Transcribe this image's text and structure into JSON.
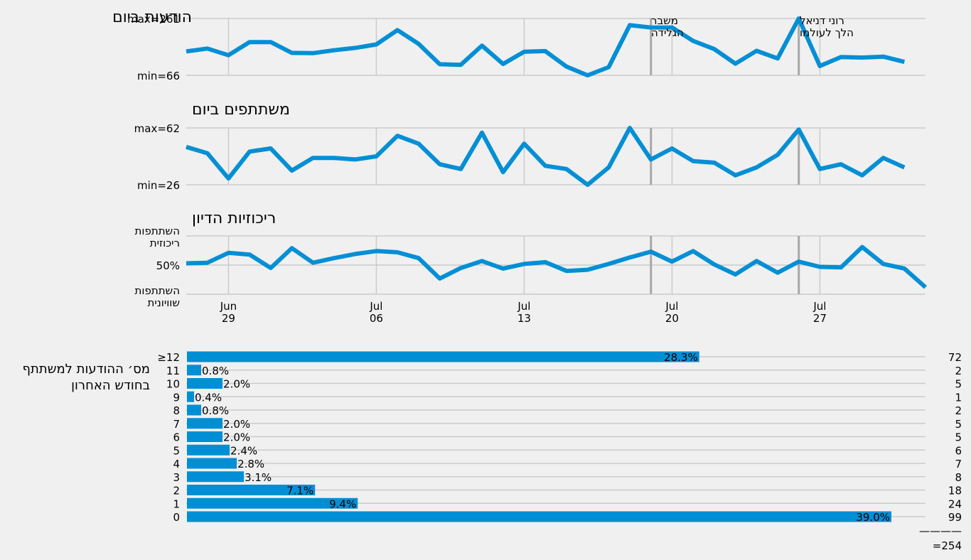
{
  "chart_data": [
    {
      "type": "line",
      "title": "הודעות ביום",
      "y_tick_labels": {
        "max": "max=261",
        "min": "min=66"
      },
      "ylim": [
        66,
        261
      ],
      "x_ticks": [
        {
          "month": "Jun",
          "day": "29"
        },
        {
          "month": "Jul",
          "day": "06"
        },
        {
          "month": "Jul",
          "day": "13"
        },
        {
          "month": "Jul",
          "day": "20"
        },
        {
          "month": "Jul",
          "day": "27"
        }
      ],
      "x": [
        "06-27",
        "06-28",
        "06-29",
        "06-30",
        "07-01",
        "07-02",
        "07-03",
        "07-04",
        "07-05",
        "07-06",
        "07-07",
        "07-08",
        "07-09",
        "07-10",
        "07-11",
        "07-12",
        "07-13",
        "07-14",
        "07-15",
        "07-16",
        "07-17",
        "07-18",
        "07-19",
        "07-20",
        "07-21",
        "07-22",
        "07-23",
        "07-24",
        "07-25",
        "07-26",
        "07-27",
        "07-28",
        "07-29",
        "07-30",
        "07-31"
      ],
      "values": [
        148,
        158,
        135,
        180,
        180,
        143,
        142,
        152,
        160,
        172,
        221,
        174,
        104,
        102,
        168,
        105,
        147,
        149,
        96,
        66,
        94,
        238,
        230,
        230,
        184,
        156,
        106,
        150,
        124,
        261,
        98,
        129,
        127,
        130,
        112
      ],
      "events": [
        {
          "date": "07-19",
          "label_lines": [
            "משבר",
            "הגלידה"
          ]
        },
        {
          "date": "07-26",
          "label_lines": [
            "רוני דניאל",
            "הלך לעולמו"
          ]
        }
      ],
      "grid": true
    },
    {
      "type": "line",
      "title": "משתתפים ביום",
      "y_tick_labels": {
        "max": "max=62",
        "min": "min=26"
      },
      "ylim": [
        26,
        62
      ],
      "x": [
        "06-27",
        "06-28",
        "06-29",
        "06-30",
        "07-01",
        "07-02",
        "07-03",
        "07-04",
        "07-05",
        "07-06",
        "07-07",
        "07-08",
        "07-09",
        "07-10",
        "07-11",
        "07-12",
        "07-13",
        "07-14",
        "07-15",
        "07-16",
        "07-17",
        "07-18",
        "07-19",
        "07-20",
        "07-21",
        "07-22",
        "07-23",
        "07-24",
        "07-25",
        "07-26",
        "07-27",
        "07-28",
        "07-29",
        "07-30",
        "07-31"
      ],
      "values": [
        50,
        46,
        30,
        47,
        49,
        35,
        43,
        43,
        42,
        44,
        57,
        52,
        39,
        36,
        59,
        34,
        52,
        38,
        36,
        26,
        37,
        62,
        42,
        49,
        41,
        40,
        32,
        37,
        45,
        61,
        36,
        39,
        32,
        43,
        37
      ],
      "events": [
        {
          "date": "07-19"
        },
        {
          "date": "07-26"
        }
      ],
      "grid": true
    },
    {
      "type": "line",
      "title": "ריכוזיות הדיון",
      "y_tick_labels": {
        "top_lines": [
          "השתתפות",
          "ריכוזית"
        ],
        "mid": "50%",
        "bottom_lines": [
          "השתתפות",
          "שוויונית"
        ]
      },
      "ylim": [
        0,
        100
      ],
      "x": [
        "06-27",
        "06-28",
        "06-29",
        "06-30",
        "07-01",
        "07-02",
        "07-03",
        "07-04",
        "07-05",
        "07-06",
        "07-07",
        "07-08",
        "07-09",
        "07-10",
        "07-11",
        "07-12",
        "07-13",
        "07-14",
        "07-15",
        "07-16",
        "07-17",
        "07-18",
        "07-19",
        "07-20",
        "07-21",
        "07-22",
        "07-23",
        "07-24",
        "07-25",
        "07-26",
        "07-27",
        "07-28",
        "07-29",
        "07-30",
        "07-31",
        "08-01"
      ],
      "values": [
        53,
        54,
        71,
        68,
        45,
        79,
        54,
        62,
        69,
        74,
        72,
        62,
        27,
        45,
        57,
        44,
        52,
        55,
        40,
        42,
        52,
        63,
        73,
        56,
        74,
        51,
        34,
        57,
        37,
        56,
        47,
        46,
        81,
        52,
        44,
        12
      ],
      "events": [
        {
          "date": "07-19"
        },
        {
          "date": "07-26"
        }
      ],
      "grid": true
    },
    {
      "type": "bar",
      "orientation": "horizontal",
      "ylabel_lines": [
        "מס׳ ההודעות למשתתף",
        "בחודש האחרון"
      ],
      "categories": [
        "≥12",
        "11",
        "10",
        "9",
        "8",
        "7",
        "6",
        "5",
        "4",
        "3",
        "2",
        "1",
        "0"
      ],
      "values": [
        72,
        2,
        5,
        1,
        2,
        5,
        5,
        6,
        7,
        8,
        18,
        24,
        99
      ],
      "pct_labels": [
        "28.3%",
        "0.8%",
        "2.0%",
        "0.4%",
        "0.8%",
        "2.0%",
        "2.0%",
        "2.4%",
        "2.8%",
        "3.1%",
        "7.1%",
        "9.4%",
        "39.0%"
      ],
      "total_rule": "————",
      "total_label": "=254",
      "xlim": [
        0,
        99
      ]
    }
  ],
  "colors": {
    "line": "#008fd5",
    "bar": "#008fd5",
    "grid": "#cbcbcb",
    "event": "#a8a8a8",
    "text": "#000000",
    "background": "#f0f0f0"
  }
}
